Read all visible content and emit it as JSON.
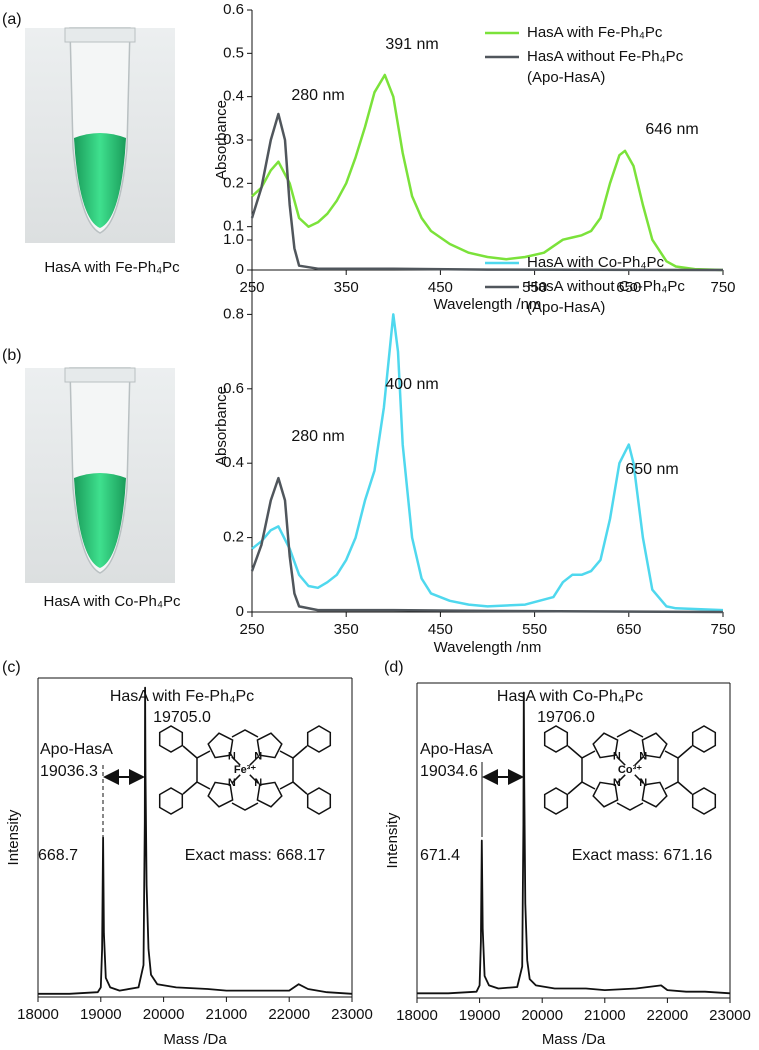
{
  "chart_data": [
    {
      "type": "line",
      "panel": "(a)",
      "caption": "HasA with Fe-Ph₄Pc",
      "xlabel": "Wavelength /nm",
      "ylabel": "Absorbance",
      "xlim": [
        250,
        750
      ],
      "xticks": [
        250,
        350,
        450,
        550,
        650,
        750
      ],
      "ylim": [
        0,
        0.6
      ],
      "yticks": [
        0,
        0.1,
        0.2,
        0.3,
        0.4,
        0.5,
        0.6
      ],
      "legend": "upper right",
      "annotations": [
        "391 nm",
        "280 nm",
        "646 nm"
      ],
      "series": [
        {
          "name": "HasA with Fe-Ph₄Pc",
          "color": "#7be23a",
          "x": [
            250,
            260,
            270,
            278,
            290,
            300,
            310,
            320,
            330,
            340,
            350,
            360,
            370,
            380,
            391,
            400,
            410,
            420,
            430,
            440,
            460,
            480,
            500,
            520,
            540,
            560,
            570,
            580,
            590,
            600,
            610,
            620,
            630,
            640,
            646,
            655,
            665,
            675,
            690,
            700,
            720,
            750
          ],
          "values": [
            0.17,
            0.19,
            0.23,
            0.25,
            0.2,
            0.12,
            0.1,
            0.11,
            0.13,
            0.16,
            0.2,
            0.26,
            0.33,
            0.41,
            0.45,
            0.4,
            0.27,
            0.17,
            0.12,
            0.09,
            0.06,
            0.04,
            0.03,
            0.025,
            0.03,
            0.04,
            0.055,
            0.07,
            0.075,
            0.08,
            0.09,
            0.12,
            0.2,
            0.265,
            0.275,
            0.24,
            0.15,
            0.07,
            0.02,
            0.008,
            0.002,
            0
          ]
        },
        {
          "name": "HasA without Fe-Ph₄Pc (Apo-HasA)",
          "color": "#50565c",
          "x": [
            250,
            260,
            270,
            278,
            285,
            290,
            295,
            300,
            320,
            400,
            500,
            750
          ],
          "values": [
            0.12,
            0.19,
            0.3,
            0.36,
            0.3,
            0.15,
            0.05,
            0.01,
            0.003,
            0.003,
            0.001,
            0
          ]
        }
      ]
    },
    {
      "type": "line",
      "panel": "(b)",
      "caption": "HasA with Co-Ph₄Pc",
      "xlabel": "Wavelength /nm",
      "ylabel": "Absorbance",
      "xlim": [
        250,
        750
      ],
      "xticks": [
        250,
        350,
        450,
        550,
        650,
        750
      ],
      "ylim": [
        0,
        1
      ],
      "yticks": [
        0,
        0.2,
        0.4,
        0.6,
        0.8,
        {
          "value": 1,
          "label": "1.0"
        }
      ],
      "legend": "upper right",
      "annotations": [
        "400 nm",
        "280 nm",
        "650 nm"
      ],
      "series": [
        {
          "name": "HasA with Co-Ph₄Pc",
          "color": "#4fd8ee",
          "x": [
            250,
            260,
            270,
            278,
            290,
            300,
            310,
            320,
            330,
            340,
            350,
            360,
            370,
            380,
            390,
            400,
            405,
            410,
            420,
            430,
            440,
            460,
            480,
            500,
            540,
            570,
            580,
            590,
            600,
            610,
            620,
            630,
            640,
            650,
            655,
            665,
            675,
            690,
            700,
            750
          ],
          "values": [
            0.17,
            0.19,
            0.22,
            0.23,
            0.17,
            0.1,
            0.07,
            0.065,
            0.08,
            0.1,
            0.14,
            0.2,
            0.3,
            0.38,
            0.55,
            0.8,
            0.7,
            0.45,
            0.2,
            0.09,
            0.05,
            0.03,
            0.02,
            0.015,
            0.02,
            0.04,
            0.08,
            0.1,
            0.1,
            0.11,
            0.14,
            0.25,
            0.4,
            0.45,
            0.4,
            0.2,
            0.06,
            0.015,
            0.01,
            0.005
          ]
        },
        {
          "name": "HasA without Co-Ph₄Pc (Apo-HasA)",
          "color": "#50565c",
          "x": [
            250,
            260,
            270,
            278,
            285,
            290,
            295,
            300,
            320,
            400,
            500,
            750
          ],
          "values": [
            0.11,
            0.18,
            0.3,
            0.36,
            0.3,
            0.15,
            0.05,
            0.015,
            0.005,
            0.005,
            0.003,
            0
          ]
        }
      ]
    },
    {
      "type": "line",
      "panel": "(c)",
      "xlabel": "Mass /Da",
      "ylabel": "Intensity",
      "box": true,
      "xlim": [
        18000,
        23000
      ],
      "xticks": [
        18000,
        19000,
        20000,
        21000,
        22000,
        23000
      ],
      "ylim": [
        0,
        1
      ],
      "annotations": [
        "HasA with Fe-Ph₄Pc",
        "19705.0",
        "Apo-HasA",
        "19036.3",
        "668.7",
        "Exact mass: 668.17"
      ],
      "structure": {
        "metal": "Fe³⁺",
        "atoms": [
          "N",
          "N",
          "N",
          "N"
        ]
      },
      "series": [
        {
          "color": "#111111",
          "x": [
            18000,
            18500,
            18950,
            19000,
            19020,
            19036,
            19050,
            19080,
            19150,
            19300,
            19600,
            19680,
            19700,
            19705,
            19712,
            19730,
            19760,
            19800,
            19900,
            20200,
            20700,
            21000,
            21500,
            22000,
            22150,
            22300,
            22600,
            23000
          ],
          "values": [
            0.01,
            0.01,
            0.015,
            0.03,
            0.15,
            0.5,
            0.2,
            0.06,
            0.03,
            0.02,
            0.03,
            0.1,
            0.55,
            0.97,
            0.7,
            0.35,
            0.15,
            0.07,
            0.04,
            0.03,
            0.025,
            0.02,
            0.02,
            0.02,
            0.04,
            0.025,
            0.015,
            0.01
          ]
        }
      ]
    },
    {
      "type": "line",
      "panel": "(d)",
      "xlabel": "Mass /Da",
      "ylabel": "Intensity",
      "box": true,
      "xlim": [
        18000,
        23000
      ],
      "xticks": [
        18000,
        19000,
        20000,
        21000,
        22000,
        23000
      ],
      "ylim": [
        0,
        1
      ],
      "annotations": [
        "HasA with Co-Ph₄Pc",
        "19706.0",
        "Apo-HasA",
        "19034.6",
        "671.4",
        "Exact mass: 671.16"
      ],
      "structure": {
        "metal": "Co³⁺",
        "atoms": [
          "N",
          "N",
          "N",
          "N"
        ]
      },
      "series": [
        {
          "color": "#111111",
          "x": [
            18000,
            18500,
            18950,
            19000,
            19020,
            19035,
            19050,
            19080,
            19150,
            19300,
            19600,
            19680,
            19700,
            19706,
            19712,
            19730,
            19760,
            19800,
            19900,
            20200,
            20700,
            21000,
            21500,
            21900,
            22000,
            22300,
            22600,
            23000
          ],
          "values": [
            0.015,
            0.015,
            0.02,
            0.04,
            0.18,
            0.5,
            0.22,
            0.07,
            0.04,
            0.03,
            0.035,
            0.1,
            0.55,
            0.97,
            0.7,
            0.3,
            0.12,
            0.06,
            0.04,
            0.03,
            0.03,
            0.025,
            0.03,
            0.04,
            0.025,
            0.02,
            0.02,
            0.015
          ]
        }
      ]
    }
  ]
}
